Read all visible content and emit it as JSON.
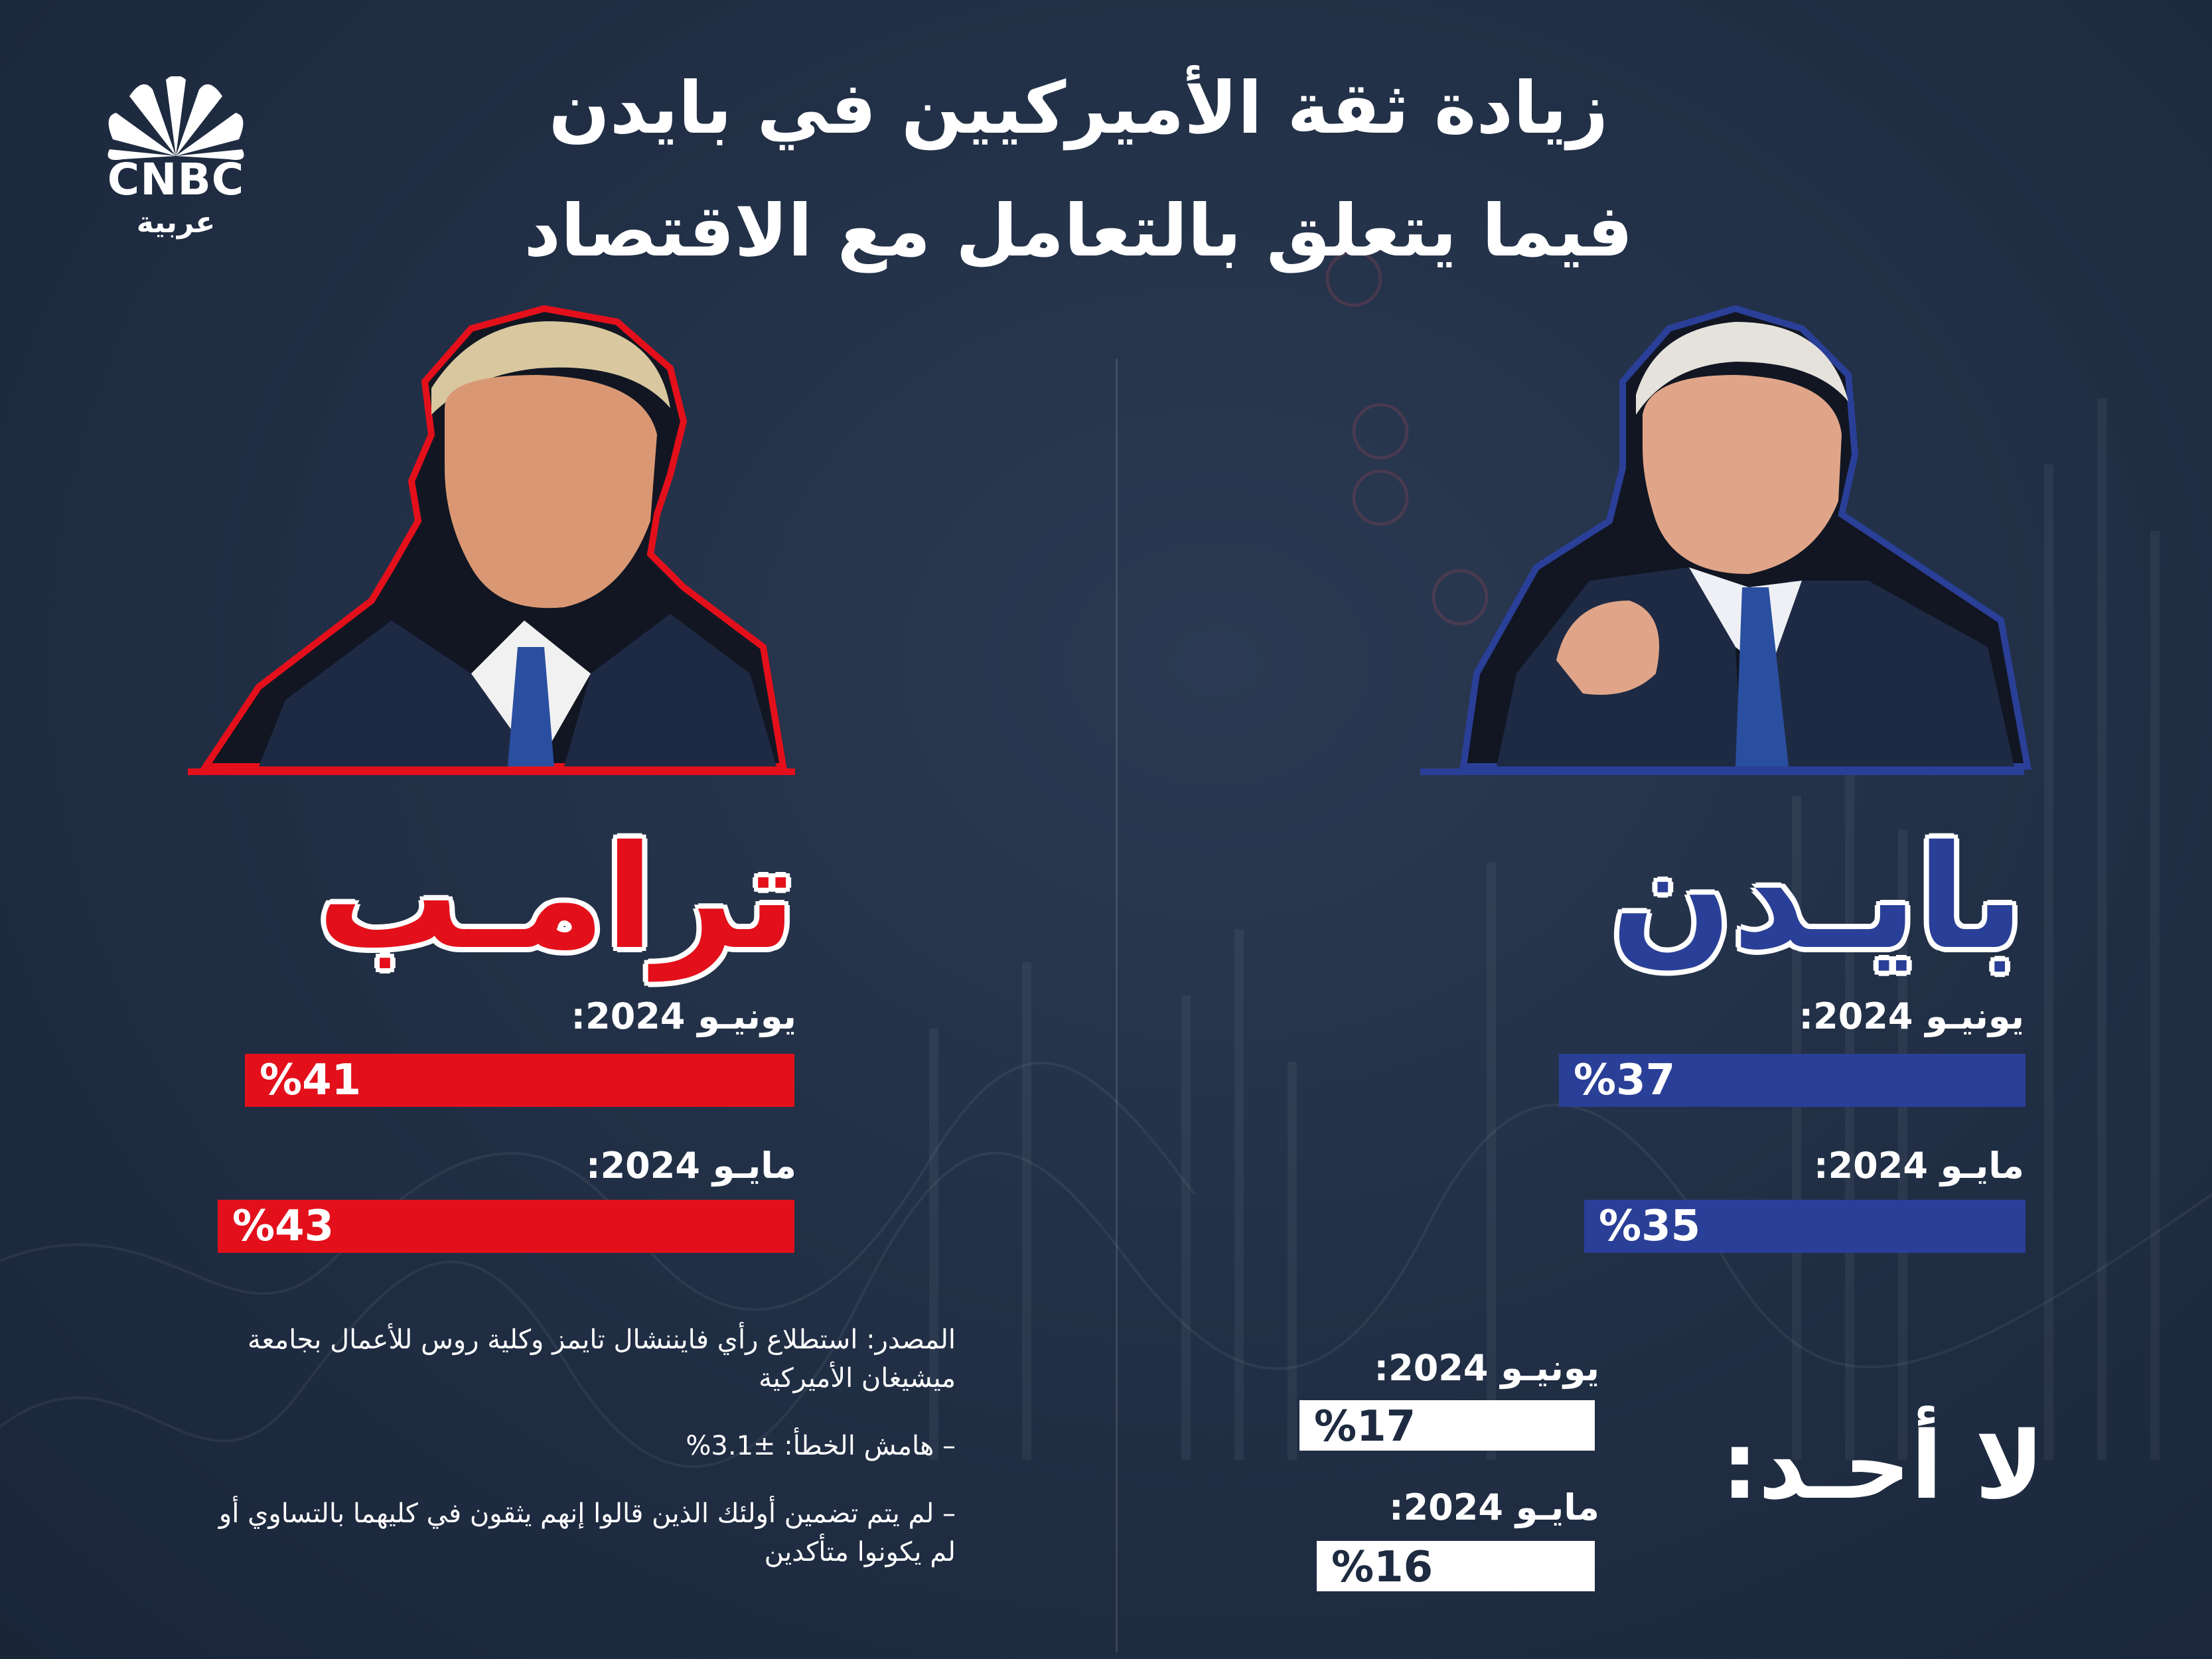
{
  "brand": {
    "name": "CNBC",
    "sub": "عربية"
  },
  "header": {
    "title_line1": "زيادة ثقة الأميركيين في بايدن",
    "title_line2": "فيما يتعلق بالتعامل مع الاقتصاد"
  },
  "colors": {
    "trump": "#e3101b",
    "biden": "#2a3f97",
    "none": "#ffffff",
    "background": "#1d2a3f"
  },
  "chart_data": {
    "type": "bar",
    "title": "زيادة ثقة الأميركيين في بايدن فيما يتعلق بالتعامل مع الاقتصاد",
    "value_unit": "%",
    "groups": [
      {
        "name": "ترامـب",
        "color": "#e3101b",
        "rows": [
          {
            "period": "يونيـو 2024:",
            "value": 41,
            "label": "%41"
          },
          {
            "period": "مايـو 2024:",
            "value": 43,
            "label": "%43"
          }
        ]
      },
      {
        "name": "بايـدن",
        "color": "#2a3f97",
        "rows": [
          {
            "period": "يونيـو 2024:",
            "value": 37,
            "label": "%37"
          },
          {
            "period": "مايـو 2024:",
            "value": 35,
            "label": "%35"
          }
        ]
      },
      {
        "name": "لا أحـد:",
        "color": "#ffffff",
        "rows": [
          {
            "period": "يونيـو 2024:",
            "value": 17,
            "label": "%17"
          },
          {
            "period": "مايـو 2024:",
            "value": 16,
            "label": "%16"
          }
        ]
      }
    ]
  },
  "notes": {
    "source": "المصدر: استطلاع رأي فايننشال تايمز وكلية روس للأعمال بجامعة ميشيغان الأميركية",
    "margin": "– هامش الخطأ: ±3.1%",
    "exclusion": "– لم يتم تضمين أولئك الذين قالوا إنهم يثقون في كليهما بالتساوي أو لم يكونوا متأكدين"
  }
}
